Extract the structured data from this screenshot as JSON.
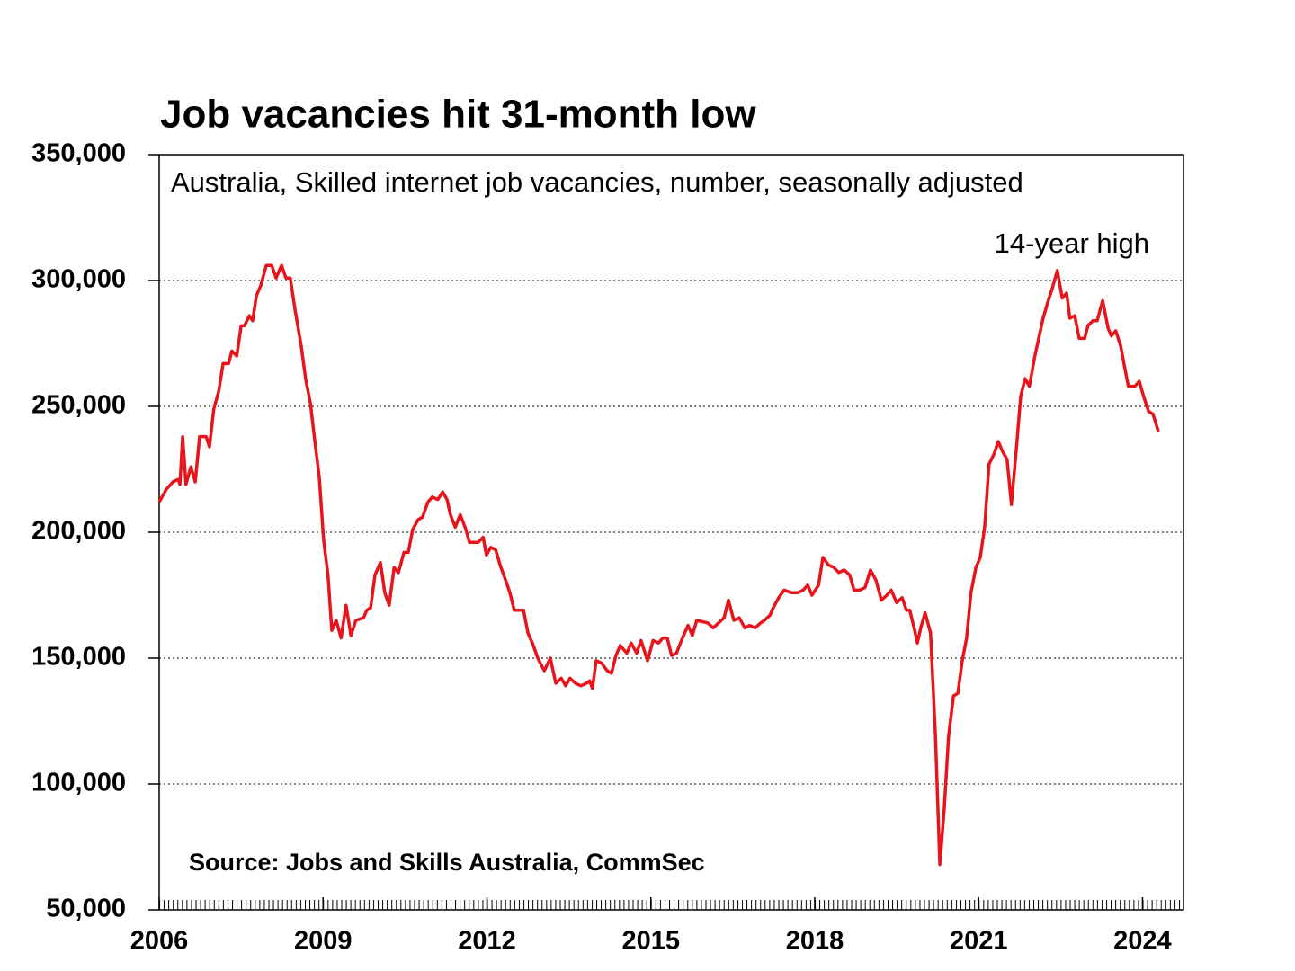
{
  "chart_data": {
    "type": "line",
    "title": "Job vacancies hit 31-month low",
    "subtitle": "Australia, Skilled internet job vacancies, number, seasonally adjusted",
    "annotation": "14-year high",
    "source": "Source: Jobs and Skills Australia, CommSec",
    "color": "#e8141c",
    "grid": true,
    "xlim": [
      2006,
      2024.75
    ],
    "xticks": [
      2006,
      2009,
      2012,
      2015,
      2018,
      2021,
      2024
    ],
    "ylim": [
      50000,
      350000
    ],
    "yticks": [
      {
        "value": 50000,
        "label": "50,000"
      },
      {
        "value": 100000,
        "label": "100,000"
      },
      {
        "value": 150000,
        "label": "150,000"
      },
      {
        "value": 200000,
        "label": "200,000"
      },
      {
        "value": 250000,
        "label": "250,000"
      },
      {
        "value": 300000,
        "label": "300,000"
      },
      {
        "value": 350000,
        "label": "350,000"
      }
    ],
    "x": [
      2006,
      2006.13,
      2006.25,
      2006.35,
      2006.38,
      2006.43,
      2006.49,
      2006.58,
      2006.66,
      2006.74,
      2006.86,
      2006.92,
      2007,
      2007.09,
      2007.17,
      2007.27,
      2007.33,
      2007.42,
      2007.5,
      2007.56,
      2007.65,
      2007.71,
      2007.78,
      2007.86,
      2007.96,
      2008.06,
      2008.14,
      2008.24,
      2008.32,
      2008.4,
      2008.49,
      2008.6,
      2008.68,
      2008.77,
      2008.85,
      2008.93,
      2009.01,
      2009.09,
      2009.16,
      2009.24,
      2009.33,
      2009.42,
      2009.51,
      2009.6,
      2009.74,
      2009.8,
      2009.87,
      2009.95,
      2010.05,
      2010.13,
      2010.21,
      2010.3,
      2010.38,
      2010.48,
      2010.56,
      2010.64,
      2010.74,
      2010.82,
      2010.92,
      2011,
      2011.1,
      2011.19,
      2011.27,
      2011.33,
      2011.42,
      2011.51,
      2011.6,
      2011.68,
      2011.84,
      2011.93,
      2011.99,
      2012.07,
      2012.16,
      2012.24,
      2012.34,
      2012.42,
      2012.5,
      2012.67,
      2012.75,
      2012.85,
      2012.93,
      2013.05,
      2013.16,
      2013.26,
      2013.36,
      2013.44,
      2013.52,
      2013.62,
      2013.72,
      2013.82,
      2013.88,
      2013.93,
      2014,
      2014.1,
      2014.2,
      2014.28,
      2014.36,
      2014.44,
      2014.56,
      2014.64,
      2014.74,
      2014.82,
      2014.94,
      2015.04,
      2015.14,
      2015.22,
      2015.3,
      2015.38,
      2015.47,
      2015.56,
      2015.68,
      2015.76,
      2015.84,
      2016.04,
      2016.14,
      2016.24,
      2016.34,
      2016.42,
      2016.52,
      2016.62,
      2016.72,
      2016.81,
      2016.91,
      2017.01,
      2017.08,
      2017.18,
      2017.24,
      2017.34,
      2017.44,
      2017.57,
      2017.69,
      2017.79,
      2017.87,
      2017.95,
      2018.07,
      2018.15,
      2018.25,
      2018.35,
      2018.44,
      2018.54,
      2018.64,
      2018.72,
      2018.82,
      2018.92,
      2019.02,
      2019.12,
      2019.22,
      2019.32,
      2019.4,
      2019.5,
      2019.6,
      2019.68,
      2019.74,
      2019.83,
      2019.88,
      2019.94,
      2020.02,
      2020.12,
      2020.21,
      2020.29,
      2020.37,
      2020.45,
      2020.54,
      2020.62,
      2020.7,
      2020.78,
      2020.86,
      2020.95,
      2021.03,
      2021.11,
      2021.19,
      2021.28,
      2021.36,
      2021.44,
      2021.52,
      2021.6,
      2021.69,
      2021.77,
      2021.85,
      2021.93,
      2022.02,
      2022.1,
      2022.18,
      2022.26,
      2022.35,
      2022.44,
      2022.53,
      2022.61,
      2022.67,
      2022.76,
      2022.84,
      2022.94,
      2023,
      2023.09,
      2023.17,
      2023.27,
      2023.37,
      2023.43,
      2023.51,
      2023.6,
      2023.66,
      2023.74,
      2023.86,
      2023.94,
      2024.02,
      2024.11,
      2024.19,
      2024.29
    ],
    "values": [
      212000,
      217000,
      220000,
      221000,
      219000,
      238000,
      219000,
      226000,
      220000,
      238000,
      238000,
      234000,
      249000,
      256000,
      267000,
      267000,
      272000,
      270000,
      282000,
      282000,
      286000,
      284000,
      294000,
      298000,
      306000,
      306000,
      301000,
      306000,
      301000,
      301000,
      288000,
      274000,
      261000,
      251000,
      236000,
      222000,
      197000,
      183000,
      161000,
      165000,
      158000,
      171000,
      159000,
      165000,
      166000,
      169000,
      170000,
      183000,
      188000,
      176000,
      171000,
      186000,
      184000,
      192000,
      192000,
      201000,
      205000,
      206000,
      212000,
      214000,
      213000,
      216000,
      213000,
      207000,
      202000,
      207000,
      202000,
      196000,
      196000,
      198000,
      191000,
      194000,
      193000,
      187000,
      181000,
      176000,
      169000,
      169000,
      160000,
      155000,
      150000,
      145000,
      150000,
      140000,
      142000,
      139000,
      142000,
      140000,
      139000,
      140000,
      141000,
      138000,
      149000,
      148000,
      145000,
      144000,
      151000,
      155000,
      152000,
      156000,
      152000,
      157000,
      149000,
      157000,
      156000,
      158000,
      158000,
      151000,
      152000,
      157000,
      163000,
      159000,
      165000,
      164000,
      162000,
      164000,
      166000,
      173000,
      165000,
      166000,
      162000,
      163000,
      162000,
      164000,
      165000,
      167000,
      170000,
      174000,
      177000,
      176000,
      176000,
      177000,
      179000,
      175000,
      179000,
      190000,
      187000,
      186000,
      184000,
      185000,
      183000,
      177000,
      177000,
      178000,
      185000,
      181000,
      173000,
      175000,
      177000,
      172000,
      174000,
      169000,
      169000,
      161000,
      156000,
      162000,
      168000,
      160000,
      119000,
      68000,
      90000,
      119000,
      135000,
      136000,
      149000,
      158000,
      176000,
      186000,
      190000,
      202000,
      227000,
      231000,
      236000,
      232000,
      229000,
      211000,
      233000,
      254000,
      261000,
      258000,
      269000,
      277000,
      285000,
      291000,
      297000,
      304000,
      293000,
      295000,
      285000,
      286000,
      277000,
      277000,
      282000,
      284000,
      284000,
      292000,
      281000,
      278000,
      280000,
      274000,
      267000,
      258000,
      258000,
      260000,
      254000,
      248000,
      247000,
      240000
    ]
  }
}
